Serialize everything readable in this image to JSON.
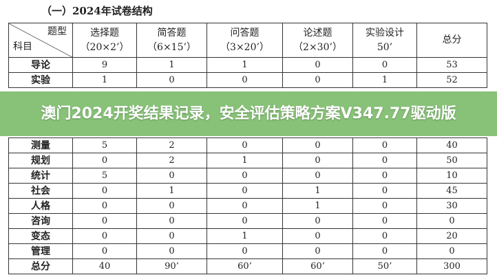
{
  "title": "（一）2024年试卷结构",
  "table": {
    "corner_top": "题型",
    "corner_bottom": "科目",
    "headers": [
      {
        "name": "选择题",
        "sub": "（20×2’）"
      },
      {
        "name": "简答题",
        "sub": "（6×15’）"
      },
      {
        "name": "问答题",
        "sub": "（3×20’）"
      },
      {
        "name": "论述题",
        "sub": "（2×30’）"
      },
      {
        "name": "实验设计",
        "sub": "50’"
      },
      {
        "name": "总分",
        "sub": ""
      }
    ],
    "rows": [
      {
        "subject": "导论",
        "values": [
          "9",
          "1",
          "1",
          "0",
          "0",
          "53"
        ]
      },
      {
        "subject": "实验",
        "values": [
          "1",
          "0",
          "0",
          "0",
          "1",
          "52"
        ]
      },
      {
        "subject": "测量",
        "values": [
          "5",
          "2",
          "0",
          "0",
          "0",
          "40"
        ]
      },
      {
        "subject": "规划",
        "values": [
          "0",
          "2",
          "1",
          "0",
          "0",
          "50"
        ]
      },
      {
        "subject": "统计",
        "values": [
          "5",
          "0",
          "0",
          "0",
          "0",
          "10"
        ]
      },
      {
        "subject": "社会",
        "values": [
          "0",
          "1",
          "0",
          "1",
          "0",
          "45"
        ]
      },
      {
        "subject": "人格",
        "values": [
          "0",
          "0",
          "0",
          "1",
          "0",
          "30"
        ]
      },
      {
        "subject": "咨询",
        "values": [
          "0",
          "0",
          "0",
          "0",
          "0",
          "0"
        ]
      },
      {
        "subject": "变态",
        "values": [
          "0",
          "0",
          "1",
          "0",
          "0",
          "20"
        ]
      },
      {
        "subject": "管理",
        "values": [
          "0",
          "0",
          "0",
          "0",
          "0",
          "0"
        ]
      },
      {
        "subject": "总分",
        "values": [
          "40",
          "90’",
          "60’",
          "60’",
          "50’",
          "300"
        ]
      }
    ]
  },
  "banner": {
    "text": "澳门2024开奖结果记录，安全评估策略方案V347.77驱动版",
    "color": "#6eb45a"
  }
}
